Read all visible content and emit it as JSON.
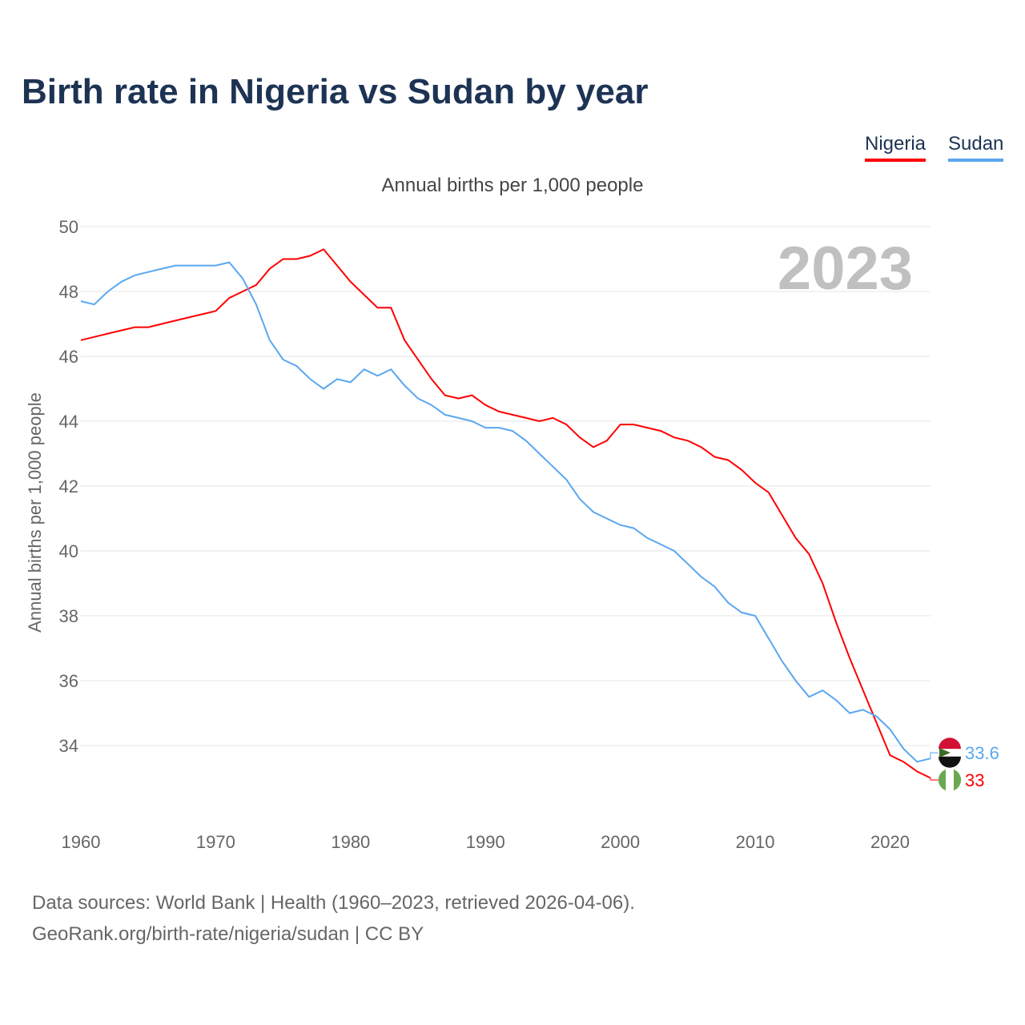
{
  "title": "Birth rate in Nigeria vs Sudan by year",
  "legend": [
    "Nigeria",
    "Sudan"
  ],
  "footer": {
    "line1": "Data sources: World Bank | Health (1960–2023, retrieved 2026-04-06).",
    "line2": "GeoRank.org/birth-rate/nigeria/sudan | CC BY"
  },
  "chart_data": {
    "type": "line",
    "title": "Birth rate in Nigeria vs Sudan by year",
    "subtitle": "Annual births per 1,000 people",
    "ylabel": "Annual births per 1,000 people",
    "xlabel": "",
    "year_label": "2023",
    "xlim": [
      1960,
      2023
    ],
    "ylim": [
      32,
      50
    ],
    "xticks": [
      1960,
      1970,
      1980,
      1990,
      2000,
      2010,
      2020
    ],
    "yticks": [
      34,
      36,
      38,
      40,
      42,
      44,
      46,
      48,
      50
    ],
    "grid": true,
    "legend_position": "top-right",
    "x": [
      1960,
      1961,
      1962,
      1963,
      1964,
      1965,
      1966,
      1967,
      1968,
      1969,
      1970,
      1971,
      1972,
      1973,
      1974,
      1975,
      1976,
      1977,
      1978,
      1979,
      1980,
      1981,
      1982,
      1983,
      1984,
      1985,
      1986,
      1987,
      1988,
      1989,
      1990,
      1991,
      1992,
      1993,
      1994,
      1995,
      1996,
      1997,
      1998,
      1999,
      2000,
      2001,
      2002,
      2003,
      2004,
      2005,
      2006,
      2007,
      2008,
      2009,
      2010,
      2011,
      2012,
      2013,
      2014,
      2015,
      2016,
      2017,
      2018,
      2019,
      2020,
      2021,
      2022,
      2023
    ],
    "series": [
      {
        "name": "Nigeria",
        "color": "#ff0000",
        "end_label": "33",
        "values": [
          46.5,
          46.6,
          46.7,
          46.8,
          46.9,
          46.9,
          47.0,
          47.1,
          47.2,
          47.3,
          47.4,
          47.8,
          48.0,
          48.2,
          48.7,
          49.0,
          49.0,
          49.1,
          49.3,
          48.8,
          48.3,
          47.9,
          47.5,
          47.5,
          46.5,
          45.9,
          45.3,
          44.8,
          44.7,
          44.8,
          44.5,
          44.3,
          44.2,
          44.1,
          44.0,
          44.1,
          43.9,
          43.5,
          43.2,
          43.4,
          43.9,
          43.9,
          43.8,
          43.7,
          43.5,
          43.4,
          43.2,
          42.9,
          42.8,
          42.5,
          42.1,
          41.8,
          41.1,
          40.4,
          39.9,
          39.0,
          37.8,
          36.7,
          35.7,
          34.7,
          33.7,
          33.5,
          33.2,
          33.0
        ]
      },
      {
        "name": "Sudan",
        "color": "#5aa7f0",
        "end_label": "33.6",
        "values": [
          47.7,
          47.6,
          48.0,
          48.3,
          48.5,
          48.6,
          48.7,
          48.8,
          48.8,
          48.8,
          48.8,
          48.9,
          48.4,
          47.6,
          46.5,
          45.9,
          45.7,
          45.3,
          45.0,
          45.3,
          45.2,
          45.6,
          45.4,
          45.6,
          45.1,
          44.7,
          44.5,
          44.2,
          44.1,
          44.0,
          43.8,
          43.8,
          43.7,
          43.4,
          43.0,
          42.6,
          42.2,
          41.6,
          41.2,
          41.0,
          40.8,
          40.7,
          40.4,
          40.2,
          40.0,
          39.6,
          39.2,
          38.9,
          38.4,
          38.1,
          38.0,
          37.3,
          36.6,
          36.0,
          35.5,
          35.7,
          35.4,
          35.0,
          35.1,
          34.9,
          34.5,
          33.9,
          33.5,
          33.6
        ]
      }
    ]
  }
}
